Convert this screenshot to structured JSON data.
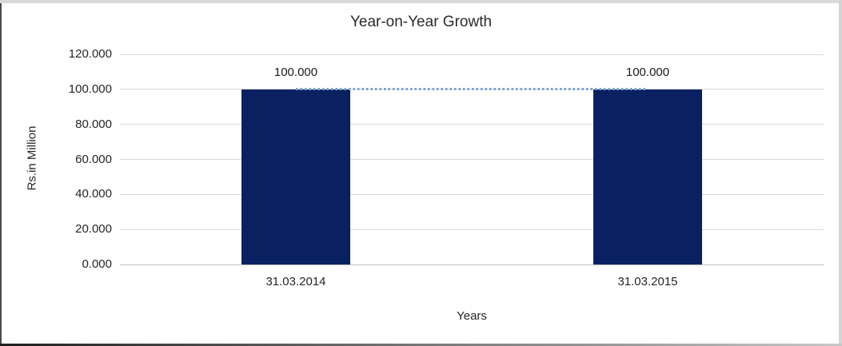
{
  "chart_data": {
    "type": "bar",
    "title": "Year-on-Year Growth",
    "xlabel": "Years",
    "ylabel": "Rs.in Million",
    "categories": [
      "31.03.2014",
      "31.03.2015"
    ],
    "values": [
      100,
      100
    ],
    "data_labels": [
      "100.000",
      "100.000"
    ],
    "ylim": [
      0,
      120
    ],
    "ytick_step": 20,
    "yticks": [
      {
        "value": 120,
        "label": "120.000"
      },
      {
        "value": 100,
        "label": "100.000"
      },
      {
        "value": 80,
        "label": "80.000"
      },
      {
        "value": 60,
        "label": "60.000"
      },
      {
        "value": 40,
        "label": "40.000"
      },
      {
        "value": 20,
        "label": "20.000"
      },
      {
        "value": 0,
        "label": "0.000"
      }
    ],
    "grid": true,
    "legend": false,
    "overlay_line": {
      "type": "line",
      "style": "dotted",
      "values": [
        100,
        100
      ]
    },
    "colors": {
      "bar": "#0a2161",
      "dotted_line": "#74a2d7",
      "gridline": "#d9d9d9",
      "axis_line": "#bfbfbf",
      "text": "#262626"
    }
  }
}
